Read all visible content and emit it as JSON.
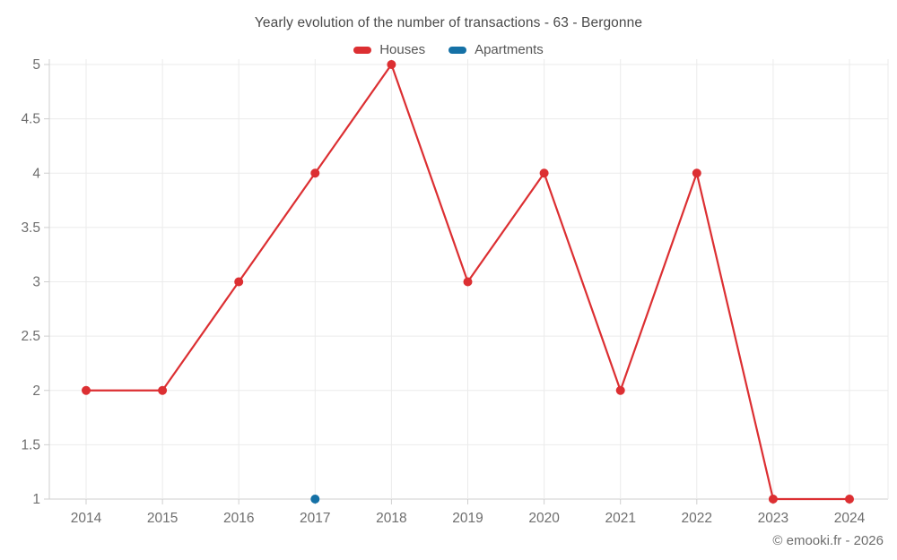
{
  "title": "Yearly evolution of the number of transactions - 63 - Bergonne",
  "footer": "© emooki.fr - 2026",
  "chart_data": {
    "type": "line",
    "title": "Yearly evolution of the number of transactions - 63 - Bergonne",
    "categories": [
      "2014",
      "2015",
      "2016",
      "2017",
      "2018",
      "2019",
      "2020",
      "2021",
      "2022",
      "2023",
      "2024"
    ],
    "series": [
      {
        "name": "Houses",
        "color": "#dc2f32",
        "values": [
          2,
          2,
          3,
          4,
          5,
          3,
          4,
          2,
          4,
          1,
          1
        ]
      },
      {
        "name": "Apartments",
        "color": "#1571a6",
        "values": [
          null,
          null,
          null,
          1,
          null,
          null,
          null,
          null,
          null,
          null,
          null
        ]
      }
    ],
    "ylim": [
      1,
      5
    ],
    "yticks": [
      1,
      1.5,
      2,
      2.5,
      3,
      3.5,
      4,
      4.5,
      5
    ],
    "grid": true,
    "legend_position": "top",
    "xlabel": "",
    "ylabel": ""
  },
  "colors": {
    "grid": "#ebebeb",
    "axis": "#cfcfcf",
    "tick_label": "#6e6e6e",
    "title": "#4a4a4a",
    "footer": "#6e6e6e",
    "background": "#ffffff"
  }
}
